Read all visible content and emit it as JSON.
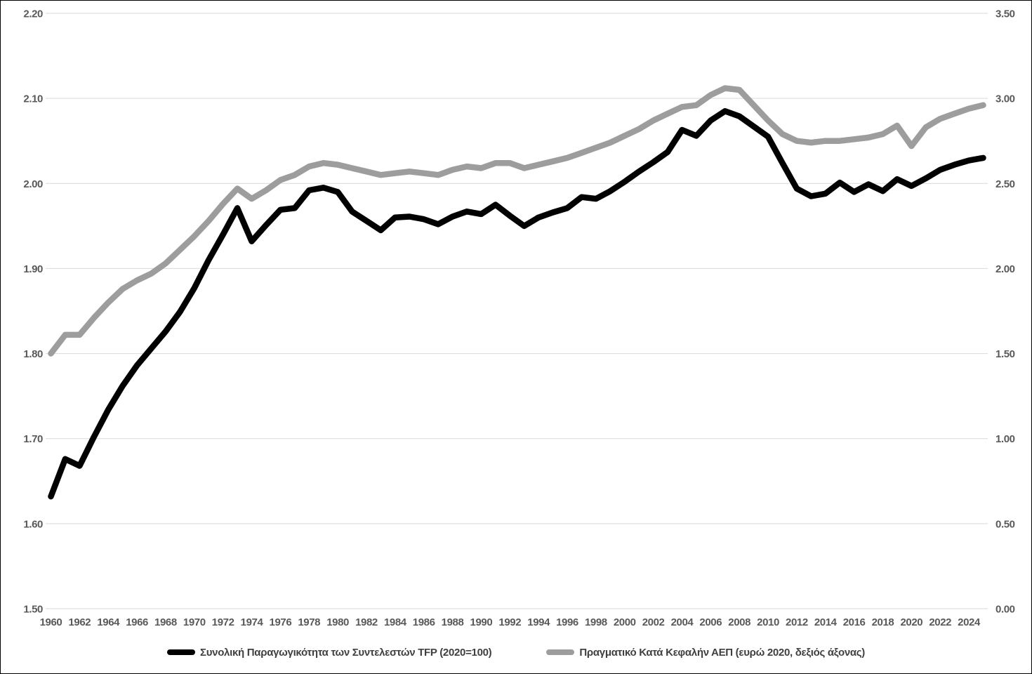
{
  "styles": {
    "background": "#ffffff",
    "border_color": "#000000",
    "grid_color": "#d9d9d9",
    "tick_label_color": "#595959",
    "legend_text_color": "#404040"
  },
  "chart_data": {
    "type": "line",
    "title": "",
    "grid": "horizontal",
    "legend_position": "bottom",
    "x": [
      1960,
      1961,
      1962,
      1963,
      1964,
      1965,
      1966,
      1967,
      1968,
      1969,
      1970,
      1971,
      1972,
      1973,
      1974,
      1975,
      1976,
      1977,
      1978,
      1979,
      1980,
      1981,
      1982,
      1983,
      1984,
      1985,
      1986,
      1987,
      1988,
      1989,
      1990,
      1991,
      1992,
      1993,
      1994,
      1995,
      1996,
      1997,
      1998,
      1999,
      2000,
      2001,
      2002,
      2003,
      2004,
      2005,
      2006,
      2007,
      2008,
      2009,
      2010,
      2011,
      2012,
      2013,
      2014,
      2015,
      2016,
      2017,
      2018,
      2019,
      2020,
      2021,
      2022,
      2023,
      2024,
      2025
    ],
    "x_tick_years": [
      1960,
      1962,
      1964,
      1966,
      1968,
      1970,
      1972,
      1974,
      1976,
      1978,
      1980,
      1982,
      1984,
      1986,
      1988,
      1990,
      1992,
      1994,
      1996,
      1998,
      2000,
      2002,
      2004,
      2006,
      2008,
      2010,
      2012,
      2014,
      2016,
      2018,
      2020,
      2022,
      2024
    ],
    "left_axis": {
      "min": 1.5,
      "max": 2.2,
      "step": 0.1,
      "ticks": [
        "2.20",
        "2.10",
        "2.00",
        "1.90",
        "1.80",
        "1.70",
        "1.60",
        "1.50"
      ]
    },
    "right_axis": {
      "min": 0.0,
      "max": 3.5,
      "step": 0.5,
      "ticks": [
        "3.50",
        "3.00",
        "2.50",
        "2.00",
        "1.50",
        "1.00",
        "0.50",
        "0.00"
      ]
    },
    "series": [
      {
        "id": "tfp",
        "name": "Συνολική Παραγωγικότητα των Συντελεστών TFP (2020=100)",
        "axis": "left",
        "color": "#000000",
        "values": [
          1.632,
          1.676,
          1.668,
          1.702,
          1.734,
          1.762,
          1.786,
          1.806,
          1.826,
          1.849,
          1.877,
          1.91,
          1.94,
          1.971,
          1.932,
          1.951,
          1.969,
          1.971,
          1.992,
          1.995,
          1.99,
          1.967,
          1.956,
          1.945,
          1.96,
          1.961,
          1.958,
          1.952,
          1.961,
          1.967,
          1.964,
          1.975,
          1.962,
          1.95,
          1.96,
          1.966,
          1.971,
          1.984,
          1.982,
          1.991,
          2.002,
          2.014,
          2.025,
          2.037,
          2.063,
          2.056,
          2.074,
          2.085,
          2.079,
          2.067,
          2.055,
          2.024,
          1.994,
          1.985,
          1.988,
          2.001,
          1.99,
          1.999,
          1.991,
          2.005,
          1.997,
          2.006,
          2.016,
          2.022,
          2.027,
          2.03
        ]
      },
      {
        "id": "gdp",
        "name": "Πραγματικό Κατά Κεφαλήν ΑΕΠ (ευρώ 2020, δεξιός άξονας)",
        "axis": "right",
        "color": "#9d9d9d",
        "values": [
          1.5,
          1.61,
          1.61,
          1.71,
          1.8,
          1.88,
          1.93,
          1.97,
          2.03,
          2.11,
          2.19,
          2.28,
          2.38,
          2.47,
          2.41,
          2.46,
          2.52,
          2.55,
          2.6,
          2.62,
          2.61,
          2.59,
          2.57,
          2.55,
          2.56,
          2.57,
          2.56,
          2.55,
          2.58,
          2.6,
          2.59,
          2.62,
          2.62,
          2.59,
          2.61,
          2.63,
          2.65,
          2.68,
          2.71,
          2.74,
          2.78,
          2.82,
          2.87,
          2.91,
          2.95,
          2.96,
          3.02,
          3.06,
          3.05,
          2.96,
          2.87,
          2.79,
          2.75,
          2.74,
          2.75,
          2.75,
          2.76,
          2.77,
          2.79,
          2.84,
          2.72,
          2.83,
          2.88,
          2.91,
          2.94,
          2.96
        ]
      }
    ]
  }
}
